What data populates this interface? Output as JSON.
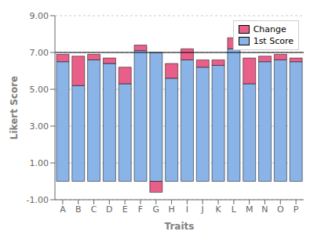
{
  "chart_data": {
    "type": "bar",
    "stacked": true,
    "xlabel": "Traits",
    "ylabel": "Likert Score",
    "categories": [
      "A",
      "B",
      "C",
      "D",
      "E",
      "F",
      "G",
      "H",
      "I",
      "J",
      "K",
      "L",
      "M",
      "N",
      "O",
      "P"
    ],
    "series": [
      {
        "name": "1st Score",
        "color": "#8AB4E8",
        "values": [
          6.5,
          5.2,
          6.6,
          6.4,
          5.3,
          7.1,
          7.0,
          5.6,
          6.6,
          6.2,
          6.3,
          7.2,
          5.3,
          6.5,
          6.6,
          6.5
        ]
      },
      {
        "name": "Change",
        "color": "#E8608A",
        "values": [
          0.4,
          1.6,
          0.3,
          0.3,
          0.9,
          0.3,
          -0.6,
          0.8,
          0.6,
          0.4,
          0.3,
          0.6,
          1.4,
          0.3,
          0.3,
          0.2
        ]
      }
    ],
    "ylim": [
      -1.0,
      9.0
    ],
    "yticks": [
      {
        "value": -1.0,
        "label": "-1.00"
      },
      {
        "value": 1.0,
        "label": "1.00"
      },
      {
        "value": 3.0,
        "label": "3.00"
      },
      {
        "value": 5.0,
        "label": "5.00"
      },
      {
        "value": 7.0,
        "label": "7.00"
      },
      {
        "value": 9.0,
        "label": "9.00"
      }
    ],
    "hline": 7.0,
    "grid": true,
    "legend": "upper right"
  }
}
